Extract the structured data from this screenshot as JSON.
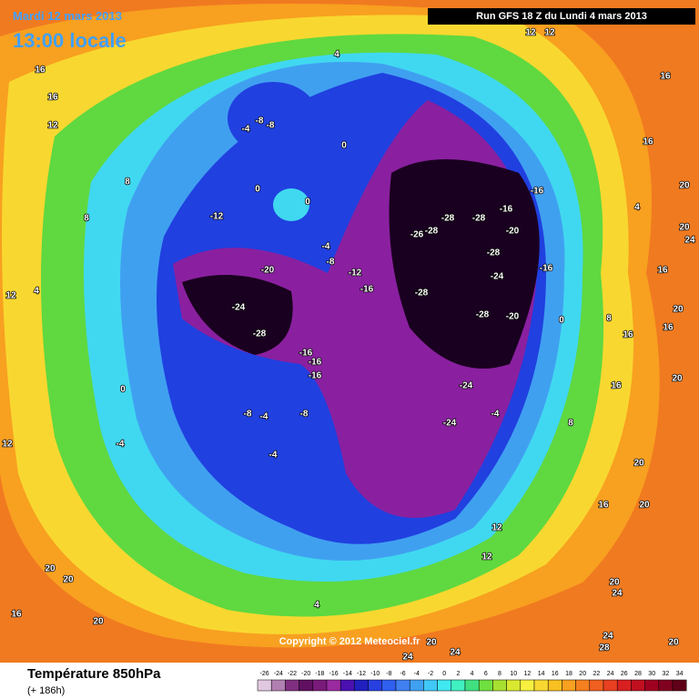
{
  "header": {
    "date": "Mardi 12 mars 2013",
    "time": "13:00 locale",
    "run": "Run GFS 18 Z du Lundi 4 mars 2013"
  },
  "copyright": "Copyright © 2012 Meteociel.fr",
  "footer": {
    "title": "Température 850hPa",
    "lead": "(+ 186h)"
  },
  "colorbar": {
    "ticks": [
      -26,
      -24,
      -22,
      -20,
      -18,
      -16,
      -14,
      -12,
      -10,
      -8,
      -6,
      -4,
      -2,
      0,
      2,
      4,
      6,
      8,
      10,
      12,
      14,
      16,
      18,
      20,
      22,
      24,
      26,
      28,
      30,
      32,
      34
    ],
    "colors": [
      "#e0c8e0",
      "#b080b0",
      "#803080",
      "#601060",
      "#7a1a7a",
      "#9a2aa0",
      "#4a10b0",
      "#2020c0",
      "#2840e0",
      "#3060f0",
      "#4080f0",
      "#40a0f0",
      "#40c8f8",
      "#40e8f0",
      "#40f0c0",
      "#40e080",
      "#70e040",
      "#a8e030",
      "#d8e830",
      "#f8f040",
      "#f8d830",
      "#f8c020",
      "#f8a020",
      "#f48020",
      "#f06020",
      "#e84020",
      "#d82020",
      "#c01020",
      "#a00020",
      "#800020",
      "#600018"
    ]
  },
  "contour_labels": [
    16,
    16,
    12,
    8,
    8,
    4,
    0,
    -4,
    12,
    20,
    20,
    16,
    20,
    4,
    -4,
    -8,
    -8,
    0,
    0,
    0,
    -12,
    -4,
    -8,
    -12,
    -16,
    -20,
    -24,
    -28,
    -16,
    -16,
    -16,
    -8,
    -4,
    -8,
    -4,
    -28,
    -28,
    -26,
    -28,
    -16,
    -16,
    -20,
    -28,
    -24,
    -16,
    -28,
    -28,
    -20,
    -24,
    -24,
    -4,
    0,
    8,
    8,
    4,
    16,
    20,
    24,
    20,
    16,
    16,
    12,
    12,
    16,
    16,
    20,
    20,
    16,
    20,
    16,
    20,
    12,
    12,
    4,
    20,
    24,
    24,
    24,
    28,
    20,
    20,
    24,
    12
  ]
}
